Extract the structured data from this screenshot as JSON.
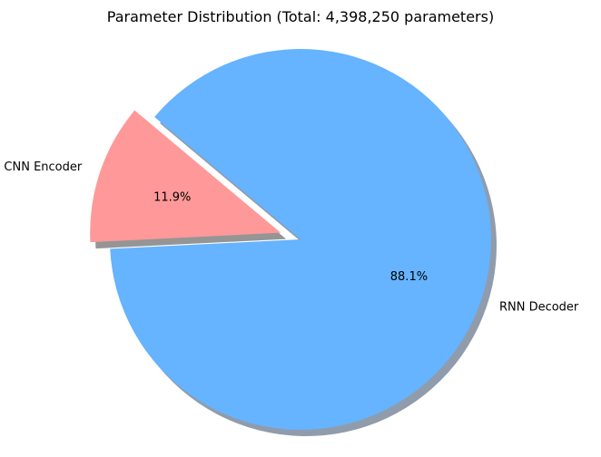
{
  "chart_data": {
    "type": "pie",
    "title": "Parameter Distribution (Total: 4,398,250 parameters)",
    "categories": [
      "CNN Encoder",
      "RNN Decoder"
    ],
    "values": [
      11.9,
      88.1
    ],
    "value_labels": [
      "11.9%",
      "88.1%"
    ],
    "colors": [
      "#ff9999",
      "#66b3ff"
    ],
    "explode": [
      0.1,
      0
    ],
    "shadow": true,
    "start_angle": 140,
    "direction": "counterclockwise"
  }
}
